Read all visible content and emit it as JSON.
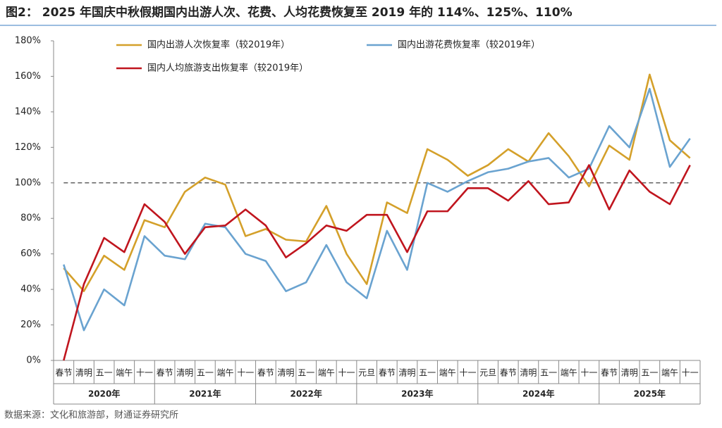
{
  "chart_data": {
    "type": "line",
    "title": "图2： 2025 年国庆中秋假期国内出游人次、花费、人均花费恢复至 2019 年的 114%、125%、110%",
    "source": "数据来源：文化和旅游部，财通证券研究所",
    "category_groups": [
      {
        "label": "2020年",
        "categories": [
          "春节",
          "清明",
          "五一",
          "端午",
          "十一"
        ]
      },
      {
        "label": "2021年",
        "categories": [
          "春节",
          "清明",
          "五一",
          "端午",
          "十一"
        ]
      },
      {
        "label": "2022年",
        "categories": [
          "春节",
          "清明",
          "五一",
          "端午",
          "十一"
        ]
      },
      {
        "label": "2023年",
        "categories": [
          "元旦",
          "春节",
          "清明",
          "五一",
          "端午",
          "十一"
        ]
      },
      {
        "label": "2024年",
        "categories": [
          "元旦",
          "春节",
          "清明",
          "五一",
          "端午",
          "十一"
        ]
      },
      {
        "label": "2025年",
        "categories": [
          "春节",
          "清明",
          "五一",
          "端午",
          "十一"
        ]
      }
    ],
    "series": [
      {
        "name": "国内出游人次恢复率（较2019年）",
        "color": "#d4a02a",
        "values": [
          52,
          39,
          59,
          51,
          79,
          75,
          95,
          103,
          99,
          70,
          74,
          68,
          67,
          87,
          60,
          43,
          89,
          83,
          119,
          113,
          104,
          110,
          119,
          112,
          128,
          115,
          98,
          121,
          113,
          161,
          124,
          114
        ]
      },
      {
        "name": "国内出游花费恢复率（较2019年）",
        "color": "#6aa3d0",
        "values": [
          54,
          17,
          40,
          31,
          70,
          59,
          57,
          77,
          75,
          60,
          56,
          39,
          44,
          65,
          44,
          35,
          73,
          51,
          100,
          95,
          101,
          106,
          108,
          112,
          114,
          103,
          108,
          132,
          120,
          153,
          109,
          125
        ]
      },
      {
        "name": "国内人均旅游支出恢复率（较2019年）",
        "color": "#c0151e",
        "values": [
          0,
          43,
          69,
          61,
          88,
          78,
          60,
          75,
          76,
          85,
          76,
          58,
          66,
          76,
          73,
          82,
          82,
          61,
          84,
          84,
          97,
          97,
          90,
          101,
          88,
          89,
          110,
          85,
          107,
          95,
          88,
          110
        ]
      }
    ],
    "ylim": [
      0,
      180
    ],
    "yticks": [
      {
        "value": 0,
        "label": "0%"
      },
      {
        "value": 20,
        "label": "20%"
      },
      {
        "value": 40,
        "label": "40%"
      },
      {
        "value": 60,
        "label": "60%"
      },
      {
        "value": 80,
        "label": "80%"
      },
      {
        "value": 100,
        "label": "100%"
      },
      {
        "value": 120,
        "label": "120%"
      },
      {
        "value": 140,
        "label": "140%"
      },
      {
        "value": 160,
        "label": "160%"
      },
      {
        "value": 180,
        "label": "180%"
      }
    ],
    "reference_line": 100,
    "grid": false
  }
}
